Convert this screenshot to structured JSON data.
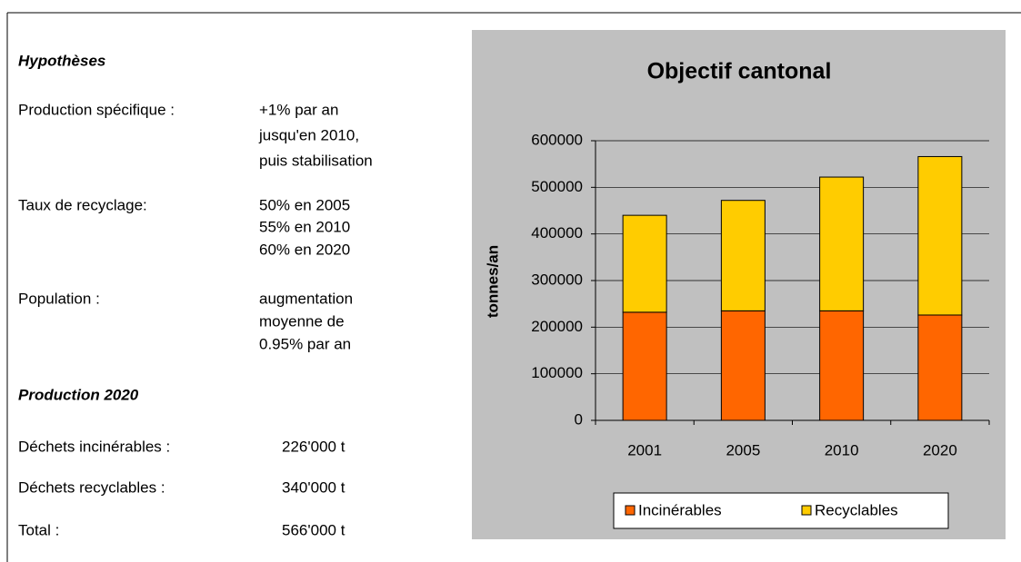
{
  "hypotheses": {
    "title": "Hypothèses",
    "rows": [
      {
        "label": "Production spécifique :",
        "lines": [
          "+1% par an",
          "jusqu'en 2010,",
          "puis stabilisation"
        ]
      },
      {
        "label": "Taux de recyclage:",
        "lines": [
          "50% en 2005",
          "55% en 2010",
          "60% en 2020"
        ]
      },
      {
        "label": "Population :",
        "lines": [
          "augmentation",
          "moyenne de",
          "0.95% par an"
        ]
      }
    ]
  },
  "production": {
    "title": "Production 2020",
    "rows": [
      {
        "label": "Déchets incinérables :",
        "value": "226'000 t"
      },
      {
        "label": "Déchets recyclables :",
        "value": "340'000 t"
      },
      {
        "label": "Total :",
        "value": "566'000 t"
      }
    ]
  },
  "chart_data": {
    "type": "bar",
    "stacked": true,
    "title": "Objectif cantonal",
    "y_label": "tonnes/an",
    "categories": [
      "2001",
      "2005",
      "2010",
      "2020"
    ],
    "series": [
      {
        "name": "Incinérables",
        "color": "#ff6600",
        "values": [
          232000,
          235000,
          235000,
          226000
        ]
      },
      {
        "name": "Recyclables",
        "color": "#ffcc00",
        "values": [
          208000,
          237000,
          287000,
          340000
        ]
      }
    ],
    "ylim": [
      0,
      600000
    ],
    "yticks": [
      0,
      100000,
      200000,
      300000,
      400000,
      500000,
      600000
    ],
    "grid": true,
    "legend": "bottom"
  }
}
